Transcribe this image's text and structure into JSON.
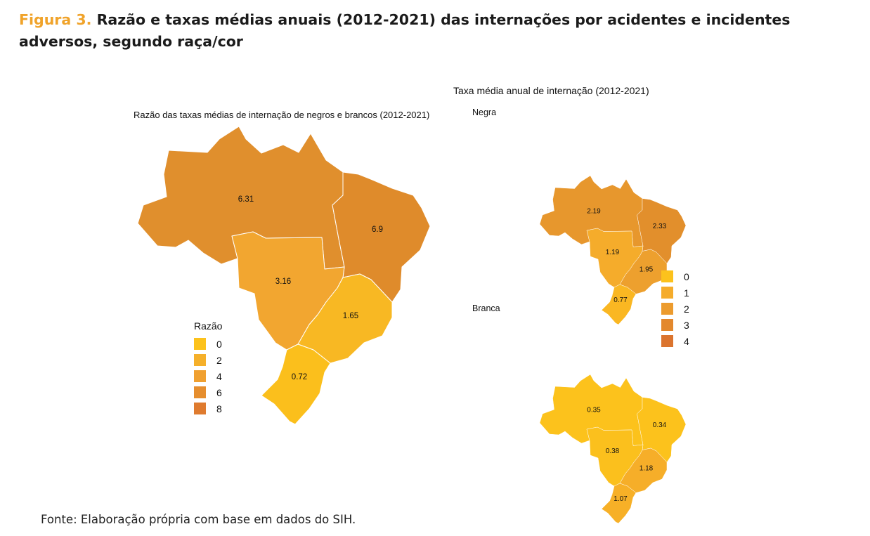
{
  "figure": {
    "label": "Figura 3.",
    "title": "Razão e taxas médias anuais (2012-2021) das internações por acidentes e incidentes adversos, segundo raça/cor",
    "source": "Fonte: Elaboração própria com base em dados do SIH."
  },
  "maps": {
    "ratio": {
      "title": "Razão das taxas médias de internação de negros e brancos (2012-2021)",
      "regions": [
        {
          "region": "Norte",
          "value": 6.31,
          "label": "6.31",
          "color": "#e08f2d"
        },
        {
          "region": "Nordeste",
          "value": 6.9,
          "label": "6.9",
          "color": "#df8b2b"
        },
        {
          "region": "Centro-Oeste",
          "value": 3.16,
          "label": "3.16",
          "color": "#f2a630"
        },
        {
          "region": "Sudeste",
          "value": 1.65,
          "label": "1.65",
          "color": "#f8b823"
        },
        {
          "region": "Sul",
          "value": 0.72,
          "label": "0.72",
          "color": "#fbbf1c"
        }
      ],
      "legend": {
        "title": "Razão",
        "items": [
          {
            "label": "0",
            "color": "#fcc21c"
          },
          {
            "label": "2",
            "color": "#f5b02a"
          },
          {
            "label": "4",
            "color": "#f0a030"
          },
          {
            "label": "6",
            "color": "#e68e2e"
          },
          {
            "label": "8",
            "color": "#df7b2f"
          }
        ]
      }
    },
    "rates": {
      "title": "Taxa média anual de internação (2012-2021)",
      "negra": {
        "subtitle": "Negra",
        "regions": [
          {
            "region": "Norte",
            "value": 2.19,
            "label": "2.19",
            "color": "#e7972d"
          },
          {
            "region": "Nordeste",
            "value": 2.33,
            "label": "2.33",
            "color": "#e28f2c"
          },
          {
            "region": "Centro-Oeste",
            "value": 1.19,
            "label": "1.19",
            "color": "#f5ac2b"
          },
          {
            "region": "Sudeste",
            "value": 1.95,
            "label": "1.95",
            "color": "#eda02e"
          },
          {
            "region": "Sul",
            "value": 0.77,
            "label": "0.77",
            "color": "#fab722"
          }
        ]
      },
      "branca": {
        "subtitle": "Branca",
        "regions": [
          {
            "region": "Norte",
            "value": 0.35,
            "label": "0.35",
            "color": "#fcc21c"
          },
          {
            "region": "Nordeste",
            "value": 0.34,
            "label": "0.34",
            "color": "#fcc21c"
          },
          {
            "region": "Centro-Oeste",
            "value": 0.38,
            "label": "0.38",
            "color": "#fbc01d"
          },
          {
            "region": "Sudeste",
            "value": 1.18,
            "label": "1.18",
            "color": "#f6ae29"
          },
          {
            "region": "Sul",
            "value": 1.07,
            "label": "1.07",
            "color": "#f7b027"
          }
        ]
      },
      "legend": {
        "items": [
          {
            "label": "0",
            "color": "#fcc21c"
          },
          {
            "label": "1",
            "color": "#f5ac2b"
          },
          {
            "label": "2",
            "color": "#ec9b2d"
          },
          {
            "label": "3",
            "color": "#e3882d"
          },
          {
            "label": "4",
            "color": "#db742e"
          }
        ]
      }
    }
  }
}
